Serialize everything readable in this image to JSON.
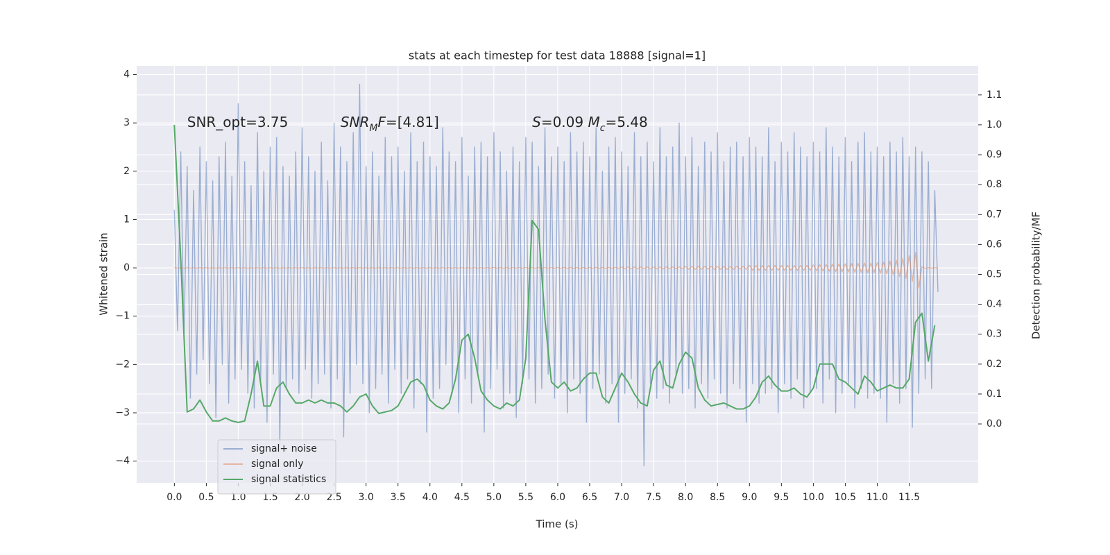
{
  "chart_data": {
    "type": "line",
    "title": "stats at each timestep for test data 18888 [signal=1]",
    "xlabel": "Time (s)",
    "ylabel": "Whitened strain",
    "y2label": "Detection probability/MF",
    "annotations": [
      [
        {
          "text": "SNR_opt=3.75"
        }
      ],
      [
        {
          "text": "SNR",
          "italic": true
        },
        {
          "text": "M",
          "italic": true,
          "sub": true
        },
        {
          "text": "F",
          "italic": true
        },
        {
          "text": "=[4.81]"
        }
      ],
      [
        {
          "text": "S",
          "italic": true
        },
        {
          "text": "=0.09   "
        },
        {
          "text": "M",
          "italic": true
        },
        {
          "text": "c",
          "italic": true,
          "sub": true
        },
        {
          "text": "=5.48"
        }
      ]
    ],
    "xlim": [
      -0.59,
      12.58
    ],
    "ylim": [
      -4.45,
      4.18
    ],
    "y2lim": [
      -0.197,
      1.197
    ],
    "xticks": [
      {
        "value": 0,
        "label": "0.0"
      },
      0.5,
      {
        "value": 1,
        "label": "1.0"
      },
      1.5,
      {
        "value": 2,
        "label": "2.0"
      },
      2.5,
      {
        "value": 3,
        "label": "3.0"
      },
      3.5,
      {
        "value": 4,
        "label": "4.0"
      },
      4.5,
      {
        "value": 5,
        "label": "5.0"
      },
      5.5,
      {
        "value": 6,
        "label": "6.0"
      },
      6.5,
      {
        "value": 7,
        "label": "7.0"
      },
      7.5,
      {
        "value": 8,
        "label": "8.0"
      },
      8.5,
      {
        "value": 9,
        "label": "9.0"
      },
      9.5,
      {
        "value": 10,
        "label": "10.0"
      },
      10.5,
      {
        "value": 11,
        "label": "11.0"
      },
      11.5
    ],
    "yticks": [
      {
        "value": -4,
        "label": "−4"
      },
      {
        "value": -3,
        "label": "−3"
      },
      {
        "value": -2,
        "label": "−2"
      },
      {
        "value": -1,
        "label": "−1"
      },
      0,
      1,
      2,
      3,
      4
    ],
    "y2ticks": [
      {
        "value": 0,
        "label": "0.0"
      },
      0.1,
      0.2,
      0.3,
      0.4,
      0.5,
      0.6,
      0.7,
      0.8,
      0.9,
      {
        "value": 1,
        "label": "1.0"
      },
      1.1
    ],
    "grid": true,
    "legend": "lower left",
    "x": [
      0,
      0.05,
      0.1,
      0.15,
      0.2,
      0.25,
      0.3,
      0.35,
      0.4,
      0.45,
      0.5,
      0.55,
      0.6,
      0.65,
      0.7,
      0.75,
      0.8,
      0.85,
      0.9,
      0.95,
      1,
      1.05,
      1.1,
      1.15,
      1.2,
      1.25,
      1.3,
      1.35,
      1.4,
      1.45,
      1.5,
      1.55,
      1.6,
      1.65,
      1.7,
      1.75,
      1.8,
      1.85,
      1.9,
      1.95,
      2,
      2.05,
      2.1,
      2.15,
      2.2,
      2.25,
      2.3,
      2.35,
      2.4,
      2.45,
      2.5,
      2.55,
      2.6,
      2.65,
      2.7,
      2.75,
      2.8,
      2.85,
      2.9,
      2.95,
      3,
      3.05,
      3.1,
      3.15,
      3.2,
      3.25,
      3.3,
      3.35,
      3.4,
      3.45,
      3.5,
      3.55,
      3.6,
      3.65,
      3.7,
      3.75,
      3.8,
      3.85,
      3.9,
      3.95,
      4,
      4.05,
      4.1,
      4.15,
      4.2,
      4.25,
      4.3,
      4.35,
      4.4,
      4.45,
      4.5,
      4.55,
      4.6,
      4.65,
      4.7,
      4.75,
      4.8,
      4.85,
      4.9,
      4.95,
      5,
      5.05,
      5.1,
      5.15,
      5.2,
      5.25,
      5.3,
      5.35,
      5.4,
      5.45,
      5.5,
      5.55,
      5.6,
      5.65,
      5.7,
      5.75,
      5.8,
      5.85,
      5.9,
      5.95,
      6,
      6.05,
      6.1,
      6.15,
      6.2,
      6.25,
      6.3,
      6.35,
      6.4,
      6.45,
      6.5,
      6.55,
      6.6,
      6.65,
      6.7,
      6.75,
      6.8,
      6.85,
      6.9,
      6.95,
      7,
      7.05,
      7.1,
      7.15,
      7.2,
      7.25,
      7.3,
      7.35,
      7.4,
      7.45,
      7.5,
      7.55,
      7.6,
      7.65,
      7.7,
      7.75,
      7.8,
      7.85,
      7.9,
      7.95,
      8,
      8.05,
      8.1,
      8.15,
      8.2,
      8.25,
      8.3,
      8.35,
      8.4,
      8.45,
      8.5,
      8.55,
      8.6,
      8.65,
      8.7,
      8.75,
      8.8,
      8.85,
      8.9,
      8.95,
      9,
      9.05,
      9.1,
      9.15,
      9.2,
      9.25,
      9.3,
      9.35,
      9.4,
      9.45,
      9.5,
      9.55,
      9.6,
      9.65,
      9.7,
      9.75,
      9.8,
      9.85,
      9.9,
      9.95,
      10,
      10.05,
      10.1,
      10.15,
      10.2,
      10.25,
      10.3,
      10.35,
      10.4,
      10.45,
      10.5,
      10.55,
      10.6,
      10.65,
      10.7,
      10.75,
      10.8,
      10.85,
      10.9,
      10.95,
      11,
      11.05,
      11.1,
      11.15,
      11.2,
      11.25,
      11.3,
      11.35,
      11.4,
      11.45,
      11.5,
      11.55,
      11.6,
      11.65,
      11.7,
      11.75,
      11.8,
      11.85,
      11.9,
      11.95
    ],
    "series": [
      {
        "name": "signal+ noise",
        "color": "#4c72b0",
        "alpha": 0.5,
        "values": [
          1.2,
          -1.3,
          2.4,
          -1.5,
          2.1,
          -2.7,
          1.6,
          -2.2,
          2.5,
          -1.9,
          2.2,
          -2.4,
          1.8,
          -3.1,
          2.3,
          -2.0,
          2.6,
          -2.8,
          1.9,
          -2.3,
          3.4,
          -2.1,
          2.2,
          -2.6,
          1.7,
          -2.9,
          2.8,
          -2.4,
          2.0,
          -3.2,
          2.5,
          -2.2,
          2.7,
          -3.7,
          2.1,
          -2.5,
          1.9,
          -2.3,
          2.4,
          -2.6,
          2.9,
          -2.1,
          2.3,
          -2.7,
          2.0,
          -2.4,
          2.6,
          -2.2,
          1.8,
          -2.9,
          3.0,
          -2.3,
          2.5,
          -3.5,
          2.2,
          -2.6,
          2.8,
          -2.0,
          3.8,
          -2.4,
          2.1,
          -3.0,
          2.4,
          -2.5,
          1.9,
          -2.2,
          2.7,
          -2.8,
          2.3,
          -2.1,
          2.5,
          -2.6,
          2.0,
          -2.3,
          2.8,
          -2.9,
          2.2,
          -2.4,
          2.6,
          -3.4,
          2.3,
          -2.7,
          2.1,
          -2.5,
          2.9,
          -2.0,
          2.4,
          -2.6,
          2.2,
          -3.0,
          2.7,
          -2.3,
          1.9,
          -2.8,
          2.5,
          -2.2,
          2.6,
          -3.4,
          2.3,
          -2.5,
          2.8,
          -2.1,
          2.4,
          -2.9,
          2.0,
          -2.6,
          2.5,
          -3.1,
          2.2,
          -2.4,
          2.7,
          -2.3,
          2.6,
          -2.8,
          2.1,
          -2.5,
          2.9,
          -2.2,
          2.3,
          -2.7,
          2.5,
          -2.4,
          2.2,
          -3.0,
          2.8,
          -2.3,
          2.4,
          -2.6,
          2.6,
          -3.2,
          2.3,
          -2.5,
          2.9,
          -2.2,
          2.0,
          -2.8,
          2.5,
          -2.4,
          2.7,
          -3.2,
          2.4,
          -2.6,
          2.1,
          -2.3,
          2.8,
          -2.9,
          2.3,
          -4.1,
          2.6,
          -2.4,
          2.2,
          -2.7,
          2.9,
          -2.5,
          2.3,
          -2.8,
          2.5,
          -2.2,
          3.0,
          -2.6,
          2.3,
          -2.5,
          2.7,
          -2.9,
          2.1,
          -2.4,
          2.6,
          -2.7,
          2.4,
          -2.3,
          2.8,
          -2.6,
          2.2,
          -2.9,
          2.5,
          -2.4,
          2.6,
          -2.5,
          2.3,
          -3.2,
          2.7,
          -2.4,
          2.5,
          -2.8,
          2.3,
          -2.6,
          2.9,
          -2.5,
          2.2,
          -3.0,
          2.6,
          -2.4,
          2.4,
          -2.7,
          2.8,
          -2.3,
          2.5,
          -2.9,
          2.3,
          -2.6,
          2.6,
          -2.5,
          2.4,
          -2.8,
          2.9,
          -2.3,
          2.5,
          -3.0,
          2.3,
          -2.6,
          2.7,
          -2.4,
          2.2,
          -2.9,
          2.6,
          -2.5,
          2.8,
          -2.7,
          2.4,
          -2.6,
          2.5,
          -2.7,
          2.3,
          -3.2,
          2.6,
          -2.4,
          2.4,
          -2.8,
          2.7,
          -2.5,
          2.3,
          -3.3,
          2.5,
          -2.6,
          2.4,
          -2.3,
          2.2,
          -2.5,
          1.6,
          -0.5
        ]
      },
      {
        "name": "signal only",
        "color": "#dd8452",
        "alpha": 0.5,
        "values": [
          0.005,
          -0.005,
          0.005,
          -0.005,
          0.005,
          -0.005,
          0.005,
          -0.005,
          0.005,
          -0.005,
          0.005,
          -0.005,
          0.005,
          -0.005,
          0.005,
          -0.005,
          0.005,
          -0.005,
          0.005,
          -0.005,
          0.005,
          -0.005,
          0.005,
          -0.005,
          0.005,
          -0.005,
          0.005,
          -0.005,
          0.005,
          -0.005,
          0.005,
          -0.005,
          0.005,
          -0.005,
          0.005,
          -0.005,
          0.005,
          -0.005,
          0.005,
          -0.005,
          0.005,
          -0.005,
          0.005,
          -0.005,
          0.005,
          -0.005,
          0.005,
          -0.005,
          0.005,
          -0.005,
          0.005,
          -0.005,
          0.005,
          -0.005,
          0.005,
          -0.005,
          0.005,
          -0.005,
          0.005,
          -0.005,
          0.005,
          -0.005,
          0.005,
          -0.005,
          0.005,
          -0.005,
          0.005,
          -0.005,
          0.005,
          -0.005,
          0.005,
          -0.005,
          0.005,
          -0.005,
          0.005,
          -0.005,
          0.005,
          -0.005,
          0.005,
          -0.005,
          0.005,
          -0.005,
          0.005,
          -0.005,
          0.005,
          -0.005,
          0.005,
          -0.005,
          0.005,
          -0.005,
          0.005,
          -0.005,
          0.005,
          -0.005,
          0.005,
          -0.005,
          0.005,
          -0.005,
          0.005,
          -0.005,
          0.008,
          -0.008,
          0.008,
          -0.008,
          0.008,
          -0.008,
          0.008,
          -0.008,
          0.008,
          -0.008,
          0.008,
          -0.008,
          0.008,
          -0.008,
          0.008,
          -0.008,
          0.008,
          -0.008,
          0.008,
          -0.008,
          0.01,
          -0.01,
          0.01,
          -0.01,
          0.01,
          -0.01,
          0.01,
          -0.01,
          0.01,
          -0.01,
          0.01,
          -0.01,
          0.01,
          -0.01,
          0.01,
          -0.01,
          0.01,
          -0.01,
          0.01,
          -0.01,
          0.02,
          -0.02,
          0.02,
          -0.02,
          0.02,
          -0.02,
          0.02,
          -0.02,
          0.02,
          -0.02,
          0.02,
          -0.02,
          0.02,
          -0.02,
          0.02,
          -0.02,
          0.02,
          -0.02,
          0.02,
          -0.02,
          0.03,
          -0.03,
          0.03,
          -0.03,
          0.03,
          -0.03,
          0.03,
          -0.03,
          0.03,
          -0.03,
          0.03,
          -0.03,
          0.03,
          -0.03,
          0.03,
          -0.03,
          0.03,
          -0.03,
          0.03,
          -0.03,
          0.05,
          -0.05,
          0.05,
          -0.05,
          0.05,
          -0.05,
          0.05,
          -0.05,
          0.05,
          -0.05,
          0.05,
          -0.05,
          0.05,
          -0.05,
          0.05,
          -0.05,
          0.05,
          -0.05,
          0.05,
          -0.05,
          0.06,
          -0.06,
          0.065,
          -0.065,
          0.07,
          -0.07,
          0.075,
          -0.075,
          0.08,
          -0.08,
          0.085,
          -0.085,
          0.09,
          -0.09,
          0.095,
          -0.095,
          0.1,
          -0.1,
          0.1,
          -0.1,
          0.11,
          -0.11,
          0.12,
          -0.13,
          0.14,
          -0.15,
          0.16,
          -0.18,
          0.2,
          -0.22,
          0.25,
          -0.28,
          0.32,
          -0.42,
          0.02,
          -0.01,
          0.005,
          -0.005,
          0.005,
          -0.005
        ]
      },
      {
        "name": "signal statistics",
        "color": "#55a868",
        "axis": "y2",
        "x": [
          0,
          0.1,
          0.2,
          0.3,
          0.4,
          0.5,
          0.6,
          0.7,
          0.8,
          0.9,
          1,
          1.1,
          1.2,
          1.3,
          1.4,
          1.5,
          1.6,
          1.7,
          1.8,
          1.9,
          2,
          2.1,
          2.2,
          2.3,
          2.4,
          2.5,
          2.6,
          2.7,
          2.8,
          2.9,
          3,
          3.1,
          3.2,
          3.3,
          3.4,
          3.5,
          3.6,
          3.7,
          3.8,
          3.9,
          4,
          4.1,
          4.2,
          4.3,
          4.4,
          4.5,
          4.6,
          4.7,
          4.8,
          4.9,
          5,
          5.1,
          5.2,
          5.3,
          5.4,
          5.5,
          5.6,
          5.7,
          5.8,
          5.9,
          6,
          6.1,
          6.2,
          6.3,
          6.4,
          6.5,
          6.6,
          6.7,
          6.8,
          6.9,
          7,
          7.1,
          7.2,
          7.3,
          7.4,
          7.5,
          7.6,
          7.7,
          7.8,
          7.9,
          8,
          8.1,
          8.2,
          8.3,
          8.4,
          8.5,
          8.6,
          8.7,
          8.8,
          8.9,
          9,
          9.1,
          9.2,
          9.3,
          9.4,
          9.5,
          9.6,
          9.7,
          9.8,
          9.9,
          10,
          10.1,
          10.2,
          10.3,
          10.4,
          10.5,
          10.6,
          10.7,
          10.8,
          10.9,
          11,
          11.1,
          11.2,
          11.3,
          11.4,
          11.5,
          11.6,
          11.7,
          11.8,
          11.9
        ],
        "values": [
          1.0,
          0.55,
          0.04,
          0.05,
          0.08,
          0.04,
          0.01,
          0.01,
          0.02,
          0.01,
          0.005,
          0.01,
          0.1,
          0.21,
          0.06,
          0.06,
          0.12,
          0.14,
          0.1,
          0.07,
          0.07,
          0.08,
          0.07,
          0.08,
          0.07,
          0.07,
          0.06,
          0.04,
          0.06,
          0.09,
          0.1,
          0.06,
          0.035,
          0.04,
          0.045,
          0.06,
          0.1,
          0.14,
          0.15,
          0.13,
          0.08,
          0.06,
          0.05,
          0.07,
          0.15,
          0.28,
          0.3,
          0.22,
          0.11,
          0.08,
          0.06,
          0.05,
          0.07,
          0.06,
          0.08,
          0.22,
          0.68,
          0.65,
          0.35,
          0.14,
          0.12,
          0.14,
          0.11,
          0.12,
          0.15,
          0.17,
          0.17,
          0.09,
          0.07,
          0.12,
          0.17,
          0.14,
          0.1,
          0.07,
          0.06,
          0.18,
          0.21,
          0.13,
          0.12,
          0.2,
          0.24,
          0.22,
          0.12,
          0.08,
          0.06,
          0.065,
          0.07,
          0.06,
          0.05,
          0.05,
          0.06,
          0.09,
          0.14,
          0.16,
          0.13,
          0.11,
          0.11,
          0.12,
          0.1,
          0.09,
          0.12,
          0.2,
          0.2,
          0.2,
          0.15,
          0.14,
          0.12,
          0.1,
          0.16,
          0.14,
          0.11,
          0.12,
          0.13,
          0.12,
          0.12,
          0.15,
          0.34,
          0.37,
          0.21,
          0.33
        ]
      }
    ]
  }
}
